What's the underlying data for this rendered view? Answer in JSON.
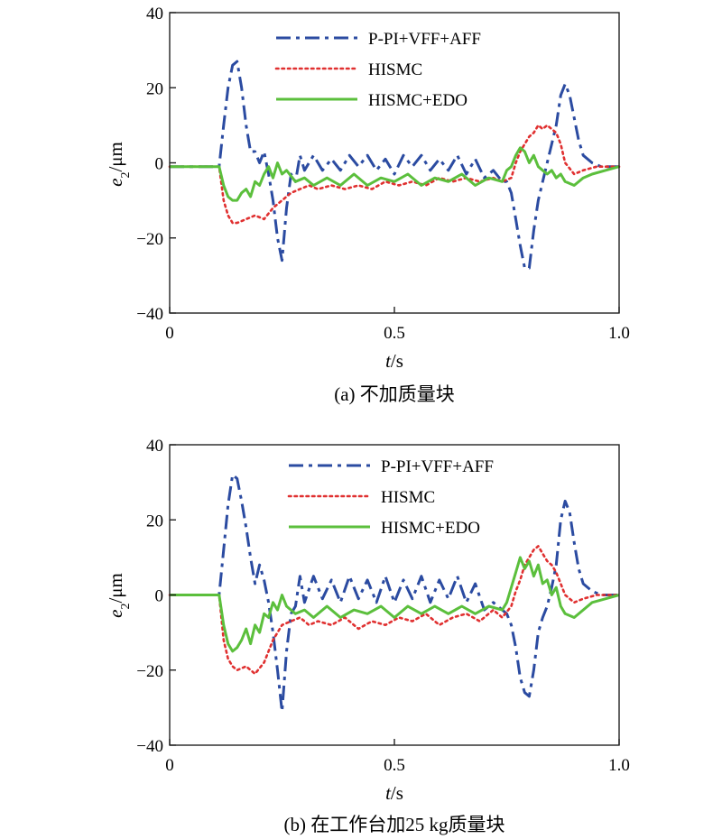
{
  "chart_data": [
    {
      "type": "line",
      "caption": "(a) 不加质量块",
      "xlabel_var": "t",
      "xlabel_unit": "/s",
      "ylabel_var": "e",
      "ylabel_sub": "2",
      "ylabel_unit": "/μm",
      "xlim": [
        0,
        1.0
      ],
      "ylim": [
        -40,
        40
      ],
      "xticks": [
        0,
        0.5,
        1.0
      ],
      "xtick_labels": [
        "0",
        "0.5",
        "1.0"
      ],
      "yticks": [
        40,
        20,
        0,
        -20,
        -40
      ],
      "ytick_labels": [
        "40",
        "20",
        "0",
        "−20",
        "−40"
      ],
      "grid": false,
      "legend_position": "top-right",
      "series": [
        {
          "name": "P-PI+VFF+AFF",
          "color": "#2b4ba1",
          "dash": "dashdot",
          "width": 3,
          "x": [
            0,
            0.1,
            0.11,
            0.12,
            0.13,
            0.14,
            0.15,
            0.16,
            0.17,
            0.18,
            0.19,
            0.2,
            0.21,
            0.22,
            0.23,
            0.24,
            0.25,
            0.26,
            0.27,
            0.28,
            0.29,
            0.3,
            0.32,
            0.34,
            0.36,
            0.38,
            0.4,
            0.42,
            0.44,
            0.46,
            0.48,
            0.5,
            0.52,
            0.54,
            0.56,
            0.58,
            0.6,
            0.62,
            0.64,
            0.66,
            0.68,
            0.7,
            0.72,
            0.74,
            0.75,
            0.76,
            0.77,
            0.78,
            0.79,
            0.8,
            0.81,
            0.82,
            0.83,
            0.84,
            0.85,
            0.86,
            0.87,
            0.88,
            0.89,
            0.9,
            0.91,
            0.92,
            0.94,
            0.96,
            0.98,
            1.0
          ],
          "y": [
            -1,
            -1,
            -1,
            10,
            20,
            26,
            27,
            20,
            10,
            3,
            3,
            0,
            3,
            -3,
            -10,
            -20,
            -26,
            -12,
            -3,
            -5,
            2,
            -2,
            2,
            -2,
            1,
            -2,
            2,
            -1,
            2,
            -2,
            1,
            -3,
            2,
            -1,
            2,
            -2,
            1,
            -2,
            2,
            -3,
            1,
            -4,
            -2,
            -5,
            -5,
            -8,
            -15,
            -22,
            -28,
            -28,
            -18,
            -10,
            -5,
            0,
            5,
            10,
            18,
            21,
            18,
            12,
            6,
            2,
            0,
            -1,
            -1,
            -1
          ]
        },
        {
          "name": "HISMC",
          "color": "#e03030",
          "dash": "dotted",
          "width": 2.6,
          "x": [
            0,
            0.1,
            0.11,
            0.12,
            0.13,
            0.14,
            0.15,
            0.17,
            0.19,
            0.21,
            0.23,
            0.25,
            0.27,
            0.29,
            0.31,
            0.33,
            0.36,
            0.39,
            0.42,
            0.45,
            0.48,
            0.51,
            0.54,
            0.57,
            0.6,
            0.63,
            0.66,
            0.69,
            0.72,
            0.74,
            0.76,
            0.77,
            0.78,
            0.79,
            0.8,
            0.81,
            0.82,
            0.83,
            0.84,
            0.85,
            0.86,
            0.87,
            0.88,
            0.9,
            0.92,
            0.95,
            1.0
          ],
          "y": [
            -1,
            -1,
            -1,
            -10,
            -14,
            -16,
            -16,
            -15,
            -14,
            -15,
            -12,
            -10,
            -8,
            -7,
            -6,
            -7,
            -6,
            -7,
            -6,
            -7,
            -5,
            -6,
            -5,
            -6,
            -4,
            -5,
            -4,
            -5,
            -4,
            -5,
            -4,
            0,
            3,
            5,
            7,
            8,
            10,
            9,
            10,
            9,
            8,
            5,
            0,
            -3,
            -2,
            -1,
            -1
          ]
        },
        {
          "name": "HISMC+EDO",
          "color": "#5bbf3c",
          "dash": "solid",
          "width": 3,
          "x": [
            0,
            0.1,
            0.11,
            0.12,
            0.13,
            0.14,
            0.15,
            0.16,
            0.17,
            0.18,
            0.19,
            0.2,
            0.21,
            0.22,
            0.23,
            0.24,
            0.25,
            0.26,
            0.28,
            0.3,
            0.32,
            0.35,
            0.38,
            0.41,
            0.44,
            0.47,
            0.5,
            0.53,
            0.56,
            0.59,
            0.62,
            0.65,
            0.68,
            0.71,
            0.74,
            0.75,
            0.76,
            0.77,
            0.78,
            0.79,
            0.8,
            0.81,
            0.82,
            0.83,
            0.84,
            0.85,
            0.86,
            0.87,
            0.88,
            0.9,
            0.92,
            0.94,
            0.97,
            1.0
          ],
          "y": [
            -1,
            -1,
            -1,
            -6,
            -9,
            -10,
            -10,
            -8,
            -7,
            -9,
            -5,
            -6,
            -3,
            -1,
            -4,
            0,
            -3,
            -2,
            -5,
            -4,
            -6,
            -4,
            -6,
            -3,
            -6,
            -4,
            -5,
            -3,
            -6,
            -4,
            -5,
            -3,
            -6,
            -4,
            -5,
            -2,
            -1,
            2,
            4,
            3,
            0,
            2,
            -1,
            -2,
            -3,
            -2,
            -4,
            -3,
            -5,
            -6,
            -4,
            -3,
            -2,
            -1
          ]
        }
      ]
    },
    {
      "type": "line",
      "caption": "(b) 在工作台加25 kg质量块",
      "xlabel_var": "t",
      "xlabel_unit": "/s",
      "ylabel_var": "e",
      "ylabel_sub": "2",
      "ylabel_unit": "/μm",
      "xlim": [
        0,
        1.0
      ],
      "ylim": [
        -40,
        40
      ],
      "xticks": [
        0,
        0.5,
        1.0
      ],
      "xtick_labels": [
        "0",
        "0.5",
        "1.0"
      ],
      "yticks": [
        40,
        20,
        0,
        -20,
        -40
      ],
      "ytick_labels": [
        "40",
        "20",
        "0",
        "−20",
        "−40"
      ],
      "grid": false,
      "legend_position": "top-right",
      "series": [
        {
          "name": "P-PI+VFF+AFF",
          "color": "#2b4ba1",
          "dash": "dashdot",
          "width": 3,
          "x": [
            0,
            0.1,
            0.11,
            0.12,
            0.13,
            0.14,
            0.15,
            0.16,
            0.17,
            0.18,
            0.19,
            0.2,
            0.21,
            0.22,
            0.23,
            0.24,
            0.25,
            0.26,
            0.27,
            0.28,
            0.29,
            0.3,
            0.32,
            0.34,
            0.36,
            0.38,
            0.4,
            0.42,
            0.44,
            0.46,
            0.48,
            0.5,
            0.52,
            0.54,
            0.56,
            0.58,
            0.6,
            0.62,
            0.64,
            0.66,
            0.68,
            0.7,
            0.72,
            0.74,
            0.75,
            0.76,
            0.77,
            0.78,
            0.79,
            0.8,
            0.81,
            0.82,
            0.83,
            0.84,
            0.85,
            0.86,
            0.87,
            0.88,
            0.89,
            0.9,
            0.91,
            0.92,
            0.94,
            0.96,
            0.98,
            1.0
          ],
          "y": [
            0,
            0,
            0,
            12,
            24,
            32,
            31,
            25,
            18,
            10,
            3,
            8,
            4,
            -2,
            -10,
            -20,
            -31,
            -15,
            -5,
            -3,
            5,
            -2,
            5,
            -1,
            4,
            -2,
            5,
            -1,
            4,
            -2,
            5,
            -2,
            4,
            -1,
            5,
            -2,
            4,
            -1,
            5,
            -2,
            3,
            -4,
            -2,
            -4,
            -5,
            -8,
            -14,
            -22,
            -26,
            -27,
            -20,
            -10,
            -6,
            -3,
            2,
            8,
            20,
            25,
            22,
            14,
            7,
            3,
            1,
            0,
            0,
            0
          ]
        },
        {
          "name": "HISMC",
          "color": "#e03030",
          "dash": "dotted",
          "width": 2.6,
          "x": [
            0,
            0.1,
            0.11,
            0.12,
            0.13,
            0.14,
            0.15,
            0.17,
            0.19,
            0.21,
            0.23,
            0.25,
            0.27,
            0.29,
            0.31,
            0.33,
            0.36,
            0.39,
            0.42,
            0.45,
            0.48,
            0.51,
            0.54,
            0.57,
            0.6,
            0.63,
            0.66,
            0.69,
            0.72,
            0.74,
            0.76,
            0.77,
            0.78,
            0.79,
            0.8,
            0.81,
            0.82,
            0.83,
            0.84,
            0.85,
            0.86,
            0.87,
            0.88,
            0.9,
            0.92,
            0.95,
            1.0
          ],
          "y": [
            0,
            0,
            0,
            -12,
            -17,
            -19,
            -20,
            -19,
            -21,
            -18,
            -12,
            -8,
            -7,
            -6,
            -8,
            -7,
            -8,
            -6,
            -9,
            -7,
            -8,
            -6,
            -7,
            -5,
            -8,
            -6,
            -5,
            -7,
            -4,
            -6,
            -3,
            1,
            4,
            8,
            10,
            12,
            13,
            11,
            9,
            8,
            6,
            3,
            0,
            -2,
            -1,
            0,
            0
          ]
        },
        {
          "name": "HISMC+EDO",
          "color": "#5bbf3c",
          "dash": "solid",
          "width": 3,
          "x": [
            0,
            0.1,
            0.11,
            0.12,
            0.13,
            0.14,
            0.15,
            0.16,
            0.17,
            0.18,
            0.19,
            0.2,
            0.21,
            0.22,
            0.23,
            0.24,
            0.25,
            0.26,
            0.28,
            0.3,
            0.32,
            0.35,
            0.38,
            0.41,
            0.44,
            0.47,
            0.5,
            0.53,
            0.56,
            0.59,
            0.62,
            0.65,
            0.68,
            0.71,
            0.74,
            0.75,
            0.76,
            0.77,
            0.78,
            0.79,
            0.8,
            0.81,
            0.82,
            0.83,
            0.84,
            0.85,
            0.86,
            0.87,
            0.88,
            0.9,
            0.92,
            0.94,
            0.97,
            1.0
          ],
          "y": [
            0,
            0,
            0,
            -8,
            -13,
            -15,
            -14,
            -12,
            -9,
            -13,
            -8,
            -10,
            -5,
            -6,
            -2,
            -4,
            0,
            -3,
            -5,
            -4,
            -6,
            -3,
            -6,
            -4,
            -5,
            -3,
            -6,
            -3,
            -5,
            -3,
            -5,
            -3,
            -5,
            -3,
            -4,
            -2,
            2,
            6,
            10,
            7,
            9,
            5,
            8,
            3,
            4,
            0,
            2,
            -3,
            -5,
            -6,
            -4,
            -2,
            -1,
            0
          ]
        }
      ]
    }
  ]
}
